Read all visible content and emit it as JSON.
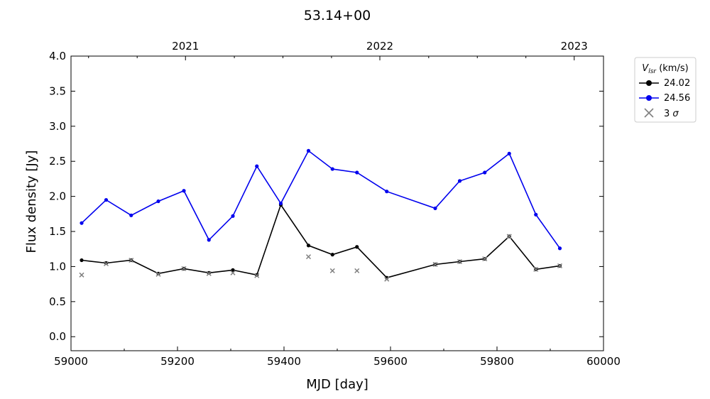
{
  "chart_data": {
    "type": "line",
    "title": "53.14+00",
    "xlabel": "MJD [day]",
    "ylabel": "Flux density [Jy]",
    "xlim": [
      59000,
      60000
    ],
    "ylim": [
      -0.2,
      4.0
    ],
    "x_ticks": [
      59000,
      59200,
      59400,
      59600,
      59800,
      60000
    ],
    "y_ticks": [
      0.0,
      0.5,
      1.0,
      1.5,
      2.0,
      2.5,
      3.0,
      3.5,
      4.0
    ],
    "x_tick_labels": [
      "59000",
      "59200",
      "59400",
      "59600",
      "59800",
      "60000"
    ],
    "y_tick_labels": [
      "0.0",
      "0.5",
      "1.0",
      "1.5",
      "2.0",
      "2.5",
      "3.0",
      "3.5",
      "4.0"
    ],
    "top_axis": {
      "label_values": [
        59215,
        59580,
        59945
      ],
      "labels": [
        "2021",
        "2022",
        "2023"
      ]
    },
    "legend": {
      "title_main": "V",
      "title_sub": "lsr",
      "title_unit": " (km/s)",
      "placement": "outside-right-top"
    },
    "grid": false,
    "series": [
      {
        "name": "24.02",
        "color": "#000000",
        "marker": "circle",
        "x": [
          59020,
          59066,
          59113,
          59164,
          59212,
          59259,
          59304,
          59349,
          59394,
          59446,
          59491,
          59537,
          59593,
          59684,
          59730,
          59777,
          59823,
          59873,
          59918
        ],
        "y": [
          1.09,
          1.05,
          1.09,
          0.9,
          0.97,
          0.91,
          0.95,
          0.88,
          1.88,
          1.3,
          1.17,
          1.28,
          0.84,
          1.03,
          1.07,
          1.11,
          1.43,
          0.96,
          1.01
        ]
      },
      {
        "name": "24.56",
        "color": "#0000ee",
        "marker": "circle",
        "x": [
          59020,
          59066,
          59113,
          59164,
          59212,
          59259,
          59304,
          59349,
          59394,
          59446,
          59491,
          59537,
          59593,
          59684,
          59730,
          59777,
          59823,
          59873,
          59918
        ],
        "y": [
          1.62,
          1.95,
          1.73,
          1.93,
          2.08,
          1.38,
          1.72,
          2.43,
          1.9,
          2.65,
          2.39,
          2.34,
          2.07,
          1.83,
          2.22,
          2.34,
          2.61,
          1.74,
          1.26
        ]
      }
    ],
    "threshold": {
      "name": "3 σ",
      "label_main": "3 ",
      "label_symbol": "σ",
      "color": "#808080",
      "marker": "x",
      "x": [
        59020,
        59066,
        59113,
        59164,
        59212,
        59259,
        59304,
        59349,
        59446,
        59491,
        59537,
        59593,
        59684,
        59730,
        59777,
        59823,
        59873,
        59918
      ],
      "y": [
        0.88,
        1.04,
        1.09,
        0.89,
        0.97,
        0.9,
        0.91,
        0.87,
        1.14,
        0.94,
        0.94,
        0.82,
        1.03,
        1.07,
        1.11,
        1.43,
        0.96,
        1.01
      ]
    }
  }
}
